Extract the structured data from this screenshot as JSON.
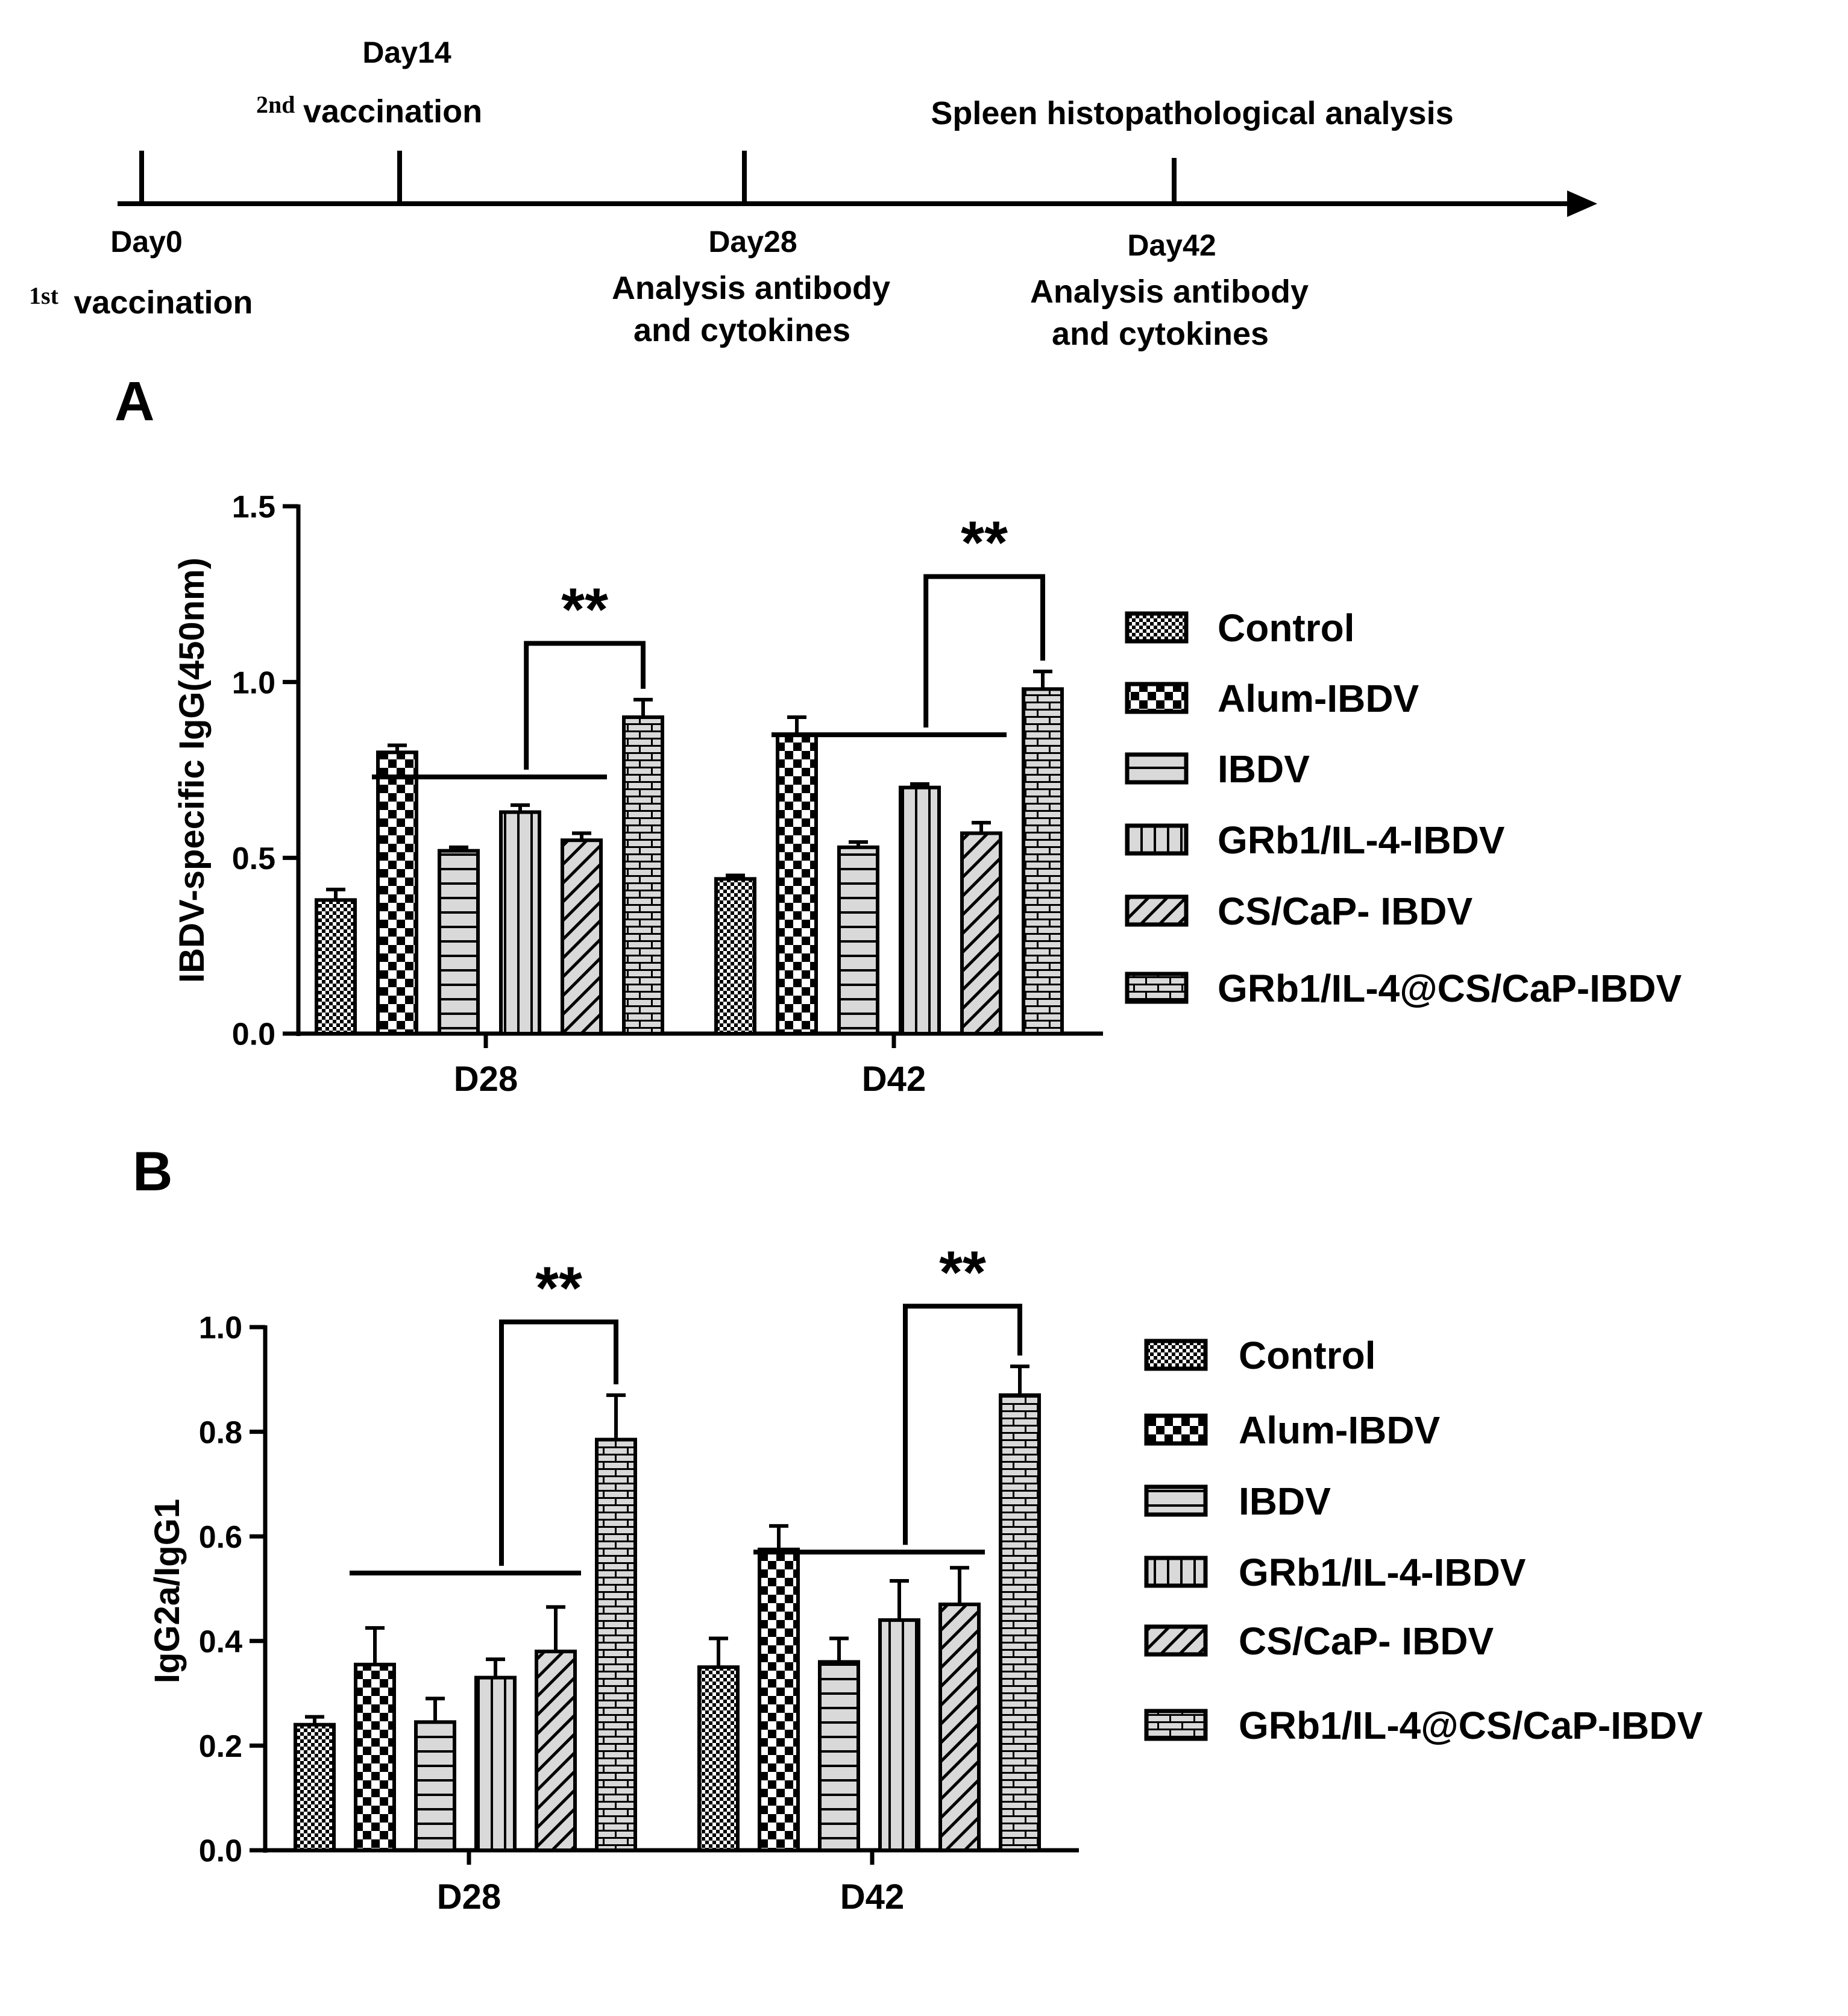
{
  "timeline": {
    "events": [
      {
        "day": "Day0",
        "sup": "1st",
        "label": "vaccination"
      },
      {
        "day": "Day14",
        "sup": "2nd",
        "label": "vaccination"
      },
      {
        "day": "Day28",
        "lines": [
          "Analysis antibody",
          "and cytokines"
        ]
      },
      {
        "day": "Day42",
        "lines": [
          "Analysis antibody",
          "and cytokines"
        ],
        "above": "Spleen histopathological analysis"
      }
    ]
  },
  "patterns": [
    "checker-small",
    "checker-large",
    "horizontal-lines",
    "vertical-lines",
    "diagonal-lines",
    "bricks"
  ],
  "chart_data": [
    {
      "panel": "A",
      "type": "bar",
      "ylabel": "IBDV-specific IgG(450nm)",
      "ylim": [
        0,
        1.5
      ],
      "yticks": [
        "0.0",
        "0.5",
        "1.0",
        "1.5"
      ],
      "categories": [
        "D28",
        "D42"
      ],
      "series": [
        {
          "name": "Control",
          "values": [
            0.38,
            0.44
          ],
          "errors": [
            0.03,
            0.01
          ]
        },
        {
          "name": "Alum-IBDV",
          "values": [
            0.8,
            0.85
          ],
          "errors": [
            0.02,
            0.05
          ]
        },
        {
          "name": "IBDV",
          "values": [
            0.52,
            0.53
          ],
          "errors": [
            0.01,
            0.015
          ]
        },
        {
          "name": "GRb1/IL-4-IBDV",
          "values": [
            0.63,
            0.7
          ],
          "errors": [
            0.02,
            0.01
          ]
        },
        {
          "name": "CS/CaP- IBDV",
          "values": [
            0.55,
            0.57
          ],
          "errors": [
            0.02,
            0.03
          ]
        },
        {
          "name": "GRb1/IL-4@CS/CaP-IBDV",
          "values": [
            0.9,
            0.98
          ],
          "errors": [
            0.05,
            0.05
          ]
        }
      ],
      "significance": [
        {
          "category": "D28",
          "label": "**",
          "bracket_value": 1.11,
          "line_value": 0.73
        },
        {
          "category": "D42",
          "label": "**",
          "bracket_value": 1.3,
          "line_value": 0.85
        }
      ]
    },
    {
      "panel": "B",
      "type": "bar",
      "ylabel": "IgG2a/IgG1",
      "ylim": [
        0,
        1.0
      ],
      "yticks": [
        "0.0",
        "0.2",
        "0.4",
        "0.6",
        "0.8",
        "1.0"
      ],
      "categories": [
        "D28",
        "D42"
      ],
      "series": [
        {
          "name": "Control",
          "values": [
            0.24,
            0.35
          ],
          "errors": [
            0.015,
            0.055
          ]
        },
        {
          "name": "Alum-IBDV",
          "values": [
            0.355,
            0.575
          ],
          "errors": [
            0.07,
            0.045
          ]
        },
        {
          "name": "IBDV",
          "values": [
            0.245,
            0.36
          ],
          "errors": [
            0.045,
            0.045
          ]
        },
        {
          "name": "GRb1/IL-4-IBDV",
          "values": [
            0.33,
            0.44
          ],
          "errors": [
            0.035,
            0.075
          ]
        },
        {
          "name": "CS/CaP- IBDV",
          "values": [
            0.38,
            0.47
          ],
          "errors": [
            0.085,
            0.07
          ]
        },
        {
          "name": "GRb1/IL-4@CS/CaP-IBDV",
          "values": [
            0.785,
            0.87
          ],
          "errors": [
            0.085,
            0.055
          ]
        }
      ],
      "significance": [
        {
          "category": "D28",
          "label": "**",
          "bracket_value": 1.01,
          "line_value": 0.53
        },
        {
          "category": "D42",
          "label": "**",
          "bracket_value": 1.04,
          "line_value": 0.57
        }
      ]
    }
  ]
}
